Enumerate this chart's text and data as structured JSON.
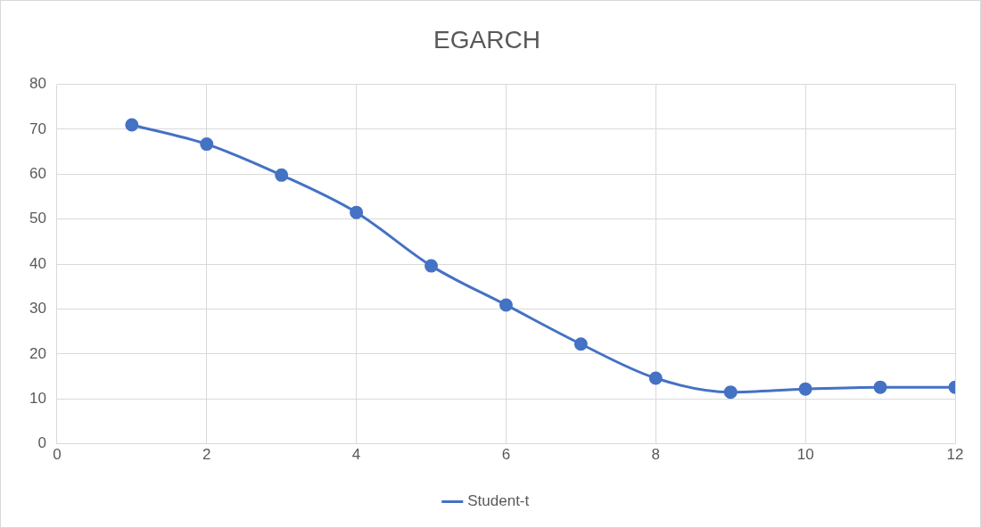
{
  "chart_data": {
    "type": "line",
    "title": "EGARCH",
    "x": [
      1,
      2,
      3,
      4,
      5,
      6,
      7,
      8,
      9,
      10,
      11,
      12
    ],
    "series": [
      {
        "name": "Student-t",
        "color": "#4472c4",
        "values": [
          71,
          66.7,
          59.8,
          51.5,
          39.6,
          30.9,
          22.2,
          14.6,
          11.5,
          12.2,
          12.6,
          12.6
        ]
      }
    ],
    "xlim": [
      0,
      12
    ],
    "xticks": [
      0,
      2,
      4,
      6,
      8,
      10,
      12
    ],
    "ylim": [
      0,
      80
    ],
    "yticks": [
      0,
      10,
      20,
      30,
      40,
      50,
      60,
      70,
      80
    ],
    "grid": true,
    "legend": "bottom",
    "marker": "circle",
    "line_style": "solid"
  }
}
